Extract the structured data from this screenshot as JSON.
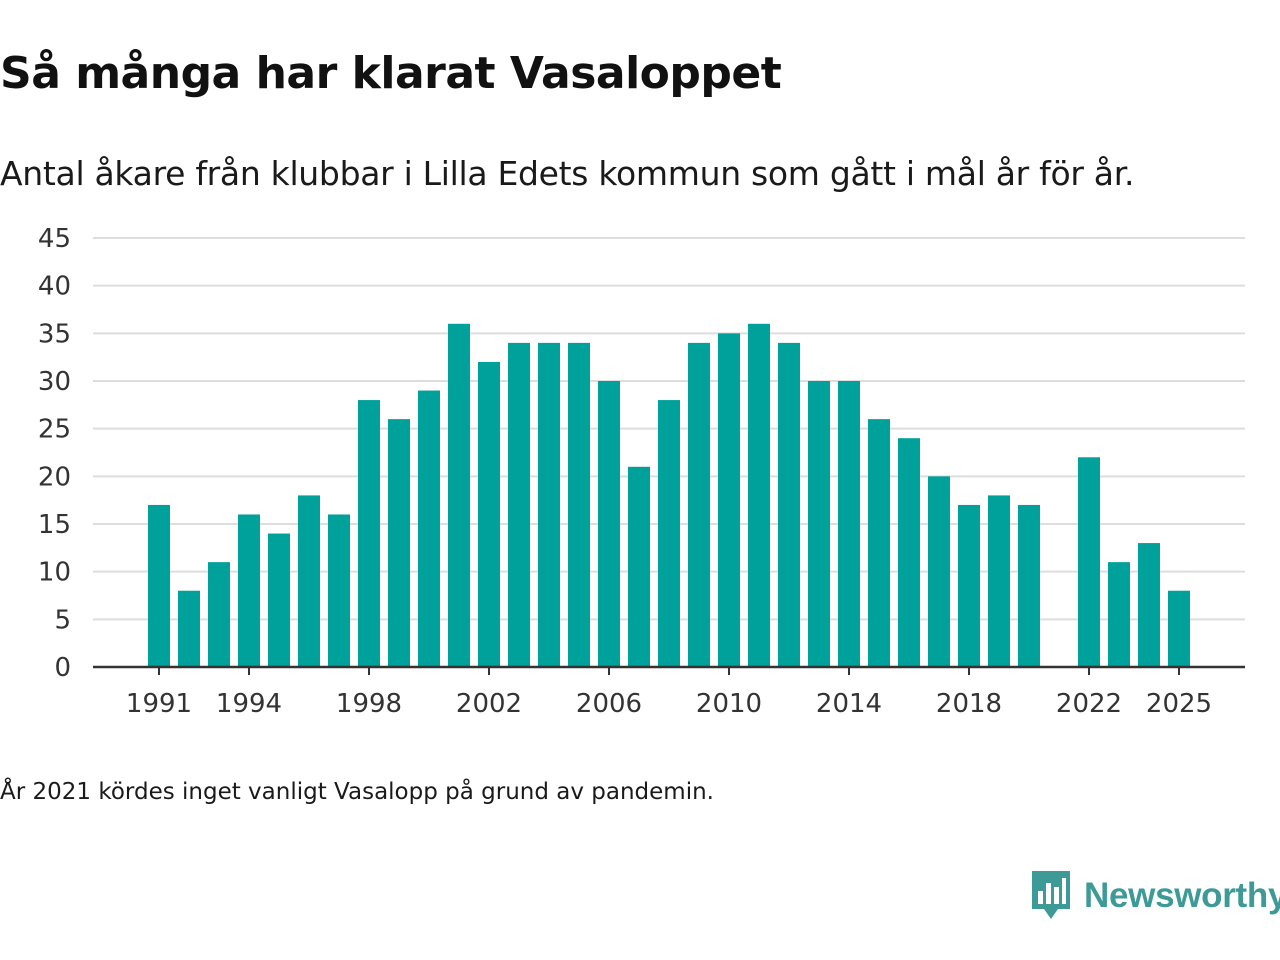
{
  "title": "Så många har klarat Vasaloppet",
  "subtitle": "Antal åkare från klubbar i Lilla Edets kommun som gått i mål år för år.",
  "footnote": "År 2021 kördes inget vanligt Vasalopp på grund av pandemin.",
  "brand": {
    "name": "Newsworthy",
    "icon": "newsworthy-logo-icon",
    "color": "#3d9a96"
  },
  "colors": {
    "bar": "#00a19a",
    "grid": "#dddddd",
    "axis": "#333333"
  },
  "chart_data": {
    "type": "bar",
    "title": "Så många har klarat Vasaloppet",
    "xlabel": "",
    "ylabel": "",
    "ylim": [
      0,
      45
    ],
    "yticks": [
      0,
      5,
      10,
      15,
      20,
      25,
      30,
      35,
      40,
      45
    ],
    "xticks": [
      1991,
      1994,
      1998,
      2002,
      2006,
      2010,
      2014,
      2018,
      2022,
      2025
    ],
    "grid": true,
    "categories": [
      1991,
      1992,
      1993,
      1994,
      1995,
      1996,
      1997,
      1998,
      1999,
      2000,
      2001,
      2002,
      2003,
      2004,
      2005,
      2006,
      2007,
      2008,
      2009,
      2010,
      2011,
      2012,
      2013,
      2014,
      2015,
      2016,
      2017,
      2018,
      2019,
      2020,
      2021,
      2022,
      2023,
      2024,
      2025
    ],
    "values": [
      17,
      8,
      11,
      16,
      14,
      18,
      16,
      28,
      26,
      29,
      36,
      32,
      34,
      34,
      34,
      30,
      21,
      28,
      34,
      35,
      36,
      34,
      30,
      30,
      26,
      24,
      20,
      17,
      18,
      17,
      null,
      22,
      11,
      13,
      8
    ]
  }
}
